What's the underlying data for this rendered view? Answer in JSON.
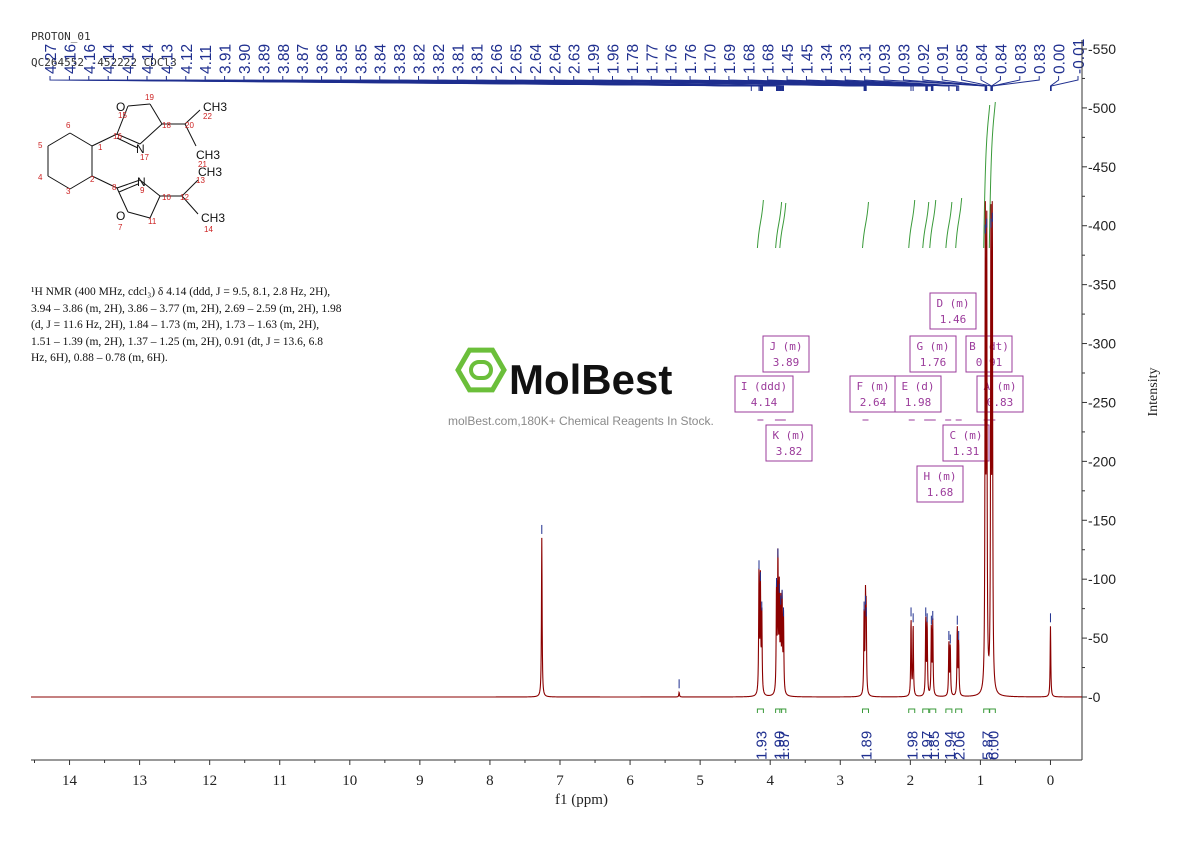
{
  "header": {
    "line1": "PROTON_01",
    "line2": "QC264552 -452222 CDCl3"
  },
  "description": {
    "lines": [
      "¹H NMR (400 MHz, cdcl₃) δ 4.14 (ddd, J = 9.5, 8.1, 2.8 Hz, 2H),",
      "3.94 – 3.86 (m, 2H), 3.86 – 3.77 (m, 2H), 2.69 – 2.59 (m, 2H), 1.98",
      "(d, J = 11.6 Hz, 2H), 1.84 – 1.73 (m, 2H), 1.73 – 1.63 (m, 2H),",
      "1.51 – 1.39 (m, 2H), 1.37 – 1.25 (m, 2H), 0.91 (dt, J = 13.6, 6.8",
      "Hz, 6H), 0.88 – 0.78 (m, 6H)."
    ]
  },
  "watermark": {
    "brand": "MolBest",
    "tagline": "molBest.com,180K+ Chemical Reagents In Stock."
  },
  "molecule": {
    "atoms": [
      "1",
      "2",
      "3",
      "4",
      "5",
      "6",
      "7",
      "8",
      "9",
      "10",
      "11",
      "12",
      "13",
      "14",
      "15",
      "16",
      "17",
      "18",
      "19",
      "20",
      "21",
      "22"
    ],
    "symbols": [
      "O",
      "N",
      "N",
      "O",
      "CH3",
      "CH3",
      "CH3",
      "CH3"
    ]
  },
  "colors": {
    "spectrum": "#8b0000",
    "peak_label": "#1f2f8f",
    "integral": "#3a9a3a",
    "multiplet_box": "#9b3b9b",
    "axis": "#333333",
    "atom_number": "#cc2222",
    "watermark_green": "#6bbf3a"
  },
  "chart_data": {
    "type": "line",
    "title": "",
    "xlabel": "f1 (ppm)",
    "ylabel": "Intensity",
    "xlim": [
      14.55,
      -0.45
    ],
    "ylim": [
      -50,
      555
    ],
    "x_ticks": [
      14,
      13,
      12,
      11,
      10,
      9,
      8,
      7,
      6,
      5,
      4,
      3,
      2,
      1,
      0
    ],
    "y_ticks": [
      0,
      50,
      100,
      150,
      200,
      250,
      300,
      350,
      400,
      450,
      500,
      550
    ],
    "peaks": [
      {
        "ppm": 7.26,
        "height": 135
      },
      {
        "ppm": 5.3,
        "height": 4
      },
      {
        "ppm": 4.16,
        "height": 105
      },
      {
        "ppm": 4.14,
        "height": 95
      },
      {
        "ppm": 4.12,
        "height": 70
      },
      {
        "ppm": 3.91,
        "height": 90
      },
      {
        "ppm": 3.89,
        "height": 115
      },
      {
        "ppm": 3.87,
        "height": 85
      },
      {
        "ppm": 3.85,
        "height": 75
      },
      {
        "ppm": 3.83,
        "height": 80
      },
      {
        "ppm": 3.81,
        "height": 65
      },
      {
        "ppm": 2.66,
        "height": 70
      },
      {
        "ppm": 2.64,
        "height": 75
      },
      {
        "ppm": 2.63,
        "height": 65
      },
      {
        "ppm": 1.99,
        "height": 65
      },
      {
        "ppm": 1.96,
        "height": 60
      },
      {
        "ppm": 1.78,
        "height": 65
      },
      {
        "ppm": 1.76,
        "height": 60
      },
      {
        "ppm": 1.7,
        "height": 58
      },
      {
        "ppm": 1.68,
        "height": 62
      },
      {
        "ppm": 1.45,
        "height": 45
      },
      {
        "ppm": 1.43,
        "height": 42
      },
      {
        "ppm": 1.33,
        "height": 58
      },
      {
        "ppm": 1.31,
        "height": 45
      },
      {
        "ppm": 0.93,
        "height": 390
      },
      {
        "ppm": 0.91,
        "height": 395
      },
      {
        "ppm": 0.85,
        "height": 395
      },
      {
        "ppm": 0.83,
        "height": 400
      },
      {
        "ppm": 0.0,
        "height": 60
      }
    ],
    "peak_labels": [
      "4.27",
      "4.16",
      "4.16",
      "4.14",
      "4.14",
      "4.14",
      "4.13",
      "4.12",
      "4.11",
      "3.91",
      "3.90",
      "3.89",
      "3.88",
      "3.87",
      "3.86",
      "3.85",
      "3.85",
      "3.84",
      "3.83",
      "3.82",
      "3.82",
      "3.81",
      "3.81",
      "2.66",
      "2.65",
      "2.64",
      "2.64",
      "2.63",
      "1.99",
      "1.96",
      "1.78",
      "1.77",
      "1.76",
      "1.76",
      "1.70",
      "1.69",
      "1.68",
      "1.68",
      "1.45",
      "1.45",
      "1.34",
      "1.33",
      "1.31",
      "0.93",
      "0.93",
      "0.92",
      "0.91",
      "0.85",
      "0.84",
      "0.84",
      "0.83",
      "0.83",
      "0.00",
      "-0.01"
    ],
    "multiplets": [
      {
        "id": "J",
        "type": "m",
        "shift": "3.89"
      },
      {
        "id": "I",
        "type": "ddd",
        "shift": "4.14"
      },
      {
        "id": "K",
        "type": "m",
        "shift": "3.82"
      },
      {
        "id": "F",
        "type": "m",
        "shift": "2.64"
      },
      {
        "id": "E",
        "type": "d",
        "shift": "1.98"
      },
      {
        "id": "D",
        "type": "m",
        "shift": "1.46"
      },
      {
        "id": "G",
        "type": "m",
        "shift": "1.76"
      },
      {
        "id": "B",
        "type": "dt",
        "shift": "0.91"
      },
      {
        "id": "A",
        "type": "m",
        "shift": "0.83"
      },
      {
        "id": "C",
        "type": "m",
        "shift": "1.31"
      },
      {
        "id": "H",
        "type": "m",
        "shift": "1.68"
      }
    ],
    "integrals": [
      {
        "value": "1.93",
        "ppm": 4.14
      },
      {
        "value": "1.90",
        "ppm": 3.88
      },
      {
        "value": "1.87",
        "ppm": 3.82
      },
      {
        "value": "1.89",
        "ppm": 2.64
      },
      {
        "value": "1.98",
        "ppm": 1.98
      },
      {
        "value": "1.97",
        "ppm": 1.78
      },
      {
        "value": "1.85",
        "ppm": 1.68
      },
      {
        "value": "1.94",
        "ppm": 1.45
      },
      {
        "value": "2.06",
        "ppm": 1.31
      },
      {
        "value": "5.87",
        "ppm": 0.91
      },
      {
        "value": "6.00",
        "ppm": 0.83
      }
    ]
  }
}
